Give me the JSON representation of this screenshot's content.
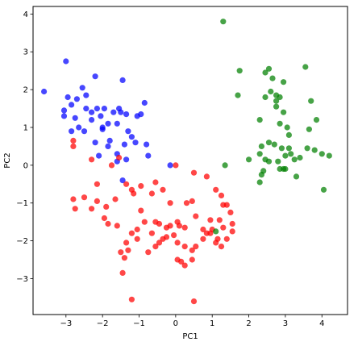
{
  "chart_data": {
    "type": "scatter",
    "xlabel": "PC1",
    "ylabel": "PC2",
    "xlim": [
      -3.9,
      4.7
    ],
    "ylim": [
      -3.95,
      4.2
    ],
    "xticks": [
      -3,
      -2,
      -1,
      0,
      1,
      2,
      3,
      4
    ],
    "yticks": [
      -3,
      -2,
      -1,
      0,
      1,
      2,
      3,
      4
    ],
    "xtick_labels": [
      "−3",
      "−2",
      "−1",
      "0",
      "1",
      "2",
      "3",
      "4"
    ],
    "ytick_labels": [
      "−3",
      "−2",
      "−1",
      "0",
      "1",
      "2",
      "3",
      "4"
    ],
    "grid": false,
    "series": [
      {
        "color": "#0000ff",
        "points": [
          [
            -3.6,
            1.95
          ],
          [
            -3.0,
            2.75
          ],
          [
            -2.95,
            1.8
          ],
          [
            -3.05,
            1.45
          ],
          [
            -3.05,
            1.3
          ],
          [
            -2.85,
            1.6
          ],
          [
            -2.7,
            1.75
          ],
          [
            -2.75,
            1.25
          ],
          [
            -2.65,
            1.0
          ],
          [
            -2.55,
            2.05
          ],
          [
            -2.45,
            1.85
          ],
          [
            -2.45,
            1.5
          ],
          [
            -2.5,
            0.9
          ],
          [
            -2.3,
            1.4
          ],
          [
            -2.3,
            1.2
          ],
          [
            -2.2,
            2.35
          ],
          [
            -2.15,
            1.5
          ],
          [
            -2.0,
            1.0
          ],
          [
            -2.0,
            0.95
          ],
          [
            -2.05,
            1.3
          ],
          [
            -1.95,
            1.5
          ],
          [
            -1.85,
            1.1
          ],
          [
            -1.85,
            0.5
          ],
          [
            -1.8,
            0.65
          ],
          [
            -1.7,
            1.4
          ],
          [
            -1.6,
            1.1
          ],
          [
            -1.55,
            1.5
          ],
          [
            -1.5,
            1.4
          ],
          [
            -1.45,
            2.25
          ],
          [
            -1.35,
            1.35
          ],
          [
            -1.3,
            0.9
          ],
          [
            -1.4,
            0.55
          ],
          [
            -1.2,
            0.75
          ],
          [
            -1.05,
            1.3
          ],
          [
            -1.1,
            0.6
          ],
          [
            -0.95,
            1.35
          ],
          [
            -0.85,
            1.65
          ],
          [
            -0.8,
            0.55
          ],
          [
            -2.85,
            0.9
          ],
          [
            -2.1,
            0.25
          ],
          [
            -1.6,
            0.1
          ],
          [
            -1.6,
            0.3
          ],
          [
            -1.35,
            0.15
          ],
          [
            -0.75,
            0.25
          ],
          [
            -0.15,
            0.0
          ],
          [
            -2.2,
            0.6
          ],
          [
            -1.45,
            -0.4
          ]
        ]
      },
      {
        "color": "#ff0000",
        "points": [
          [
            -2.8,
            0.65
          ],
          [
            -2.8,
            0.5
          ],
          [
            -2.3,
            0.15
          ],
          [
            -2.15,
            -0.5
          ],
          [
            -1.75,
            0.0
          ],
          [
            -1.55,
            0.2
          ],
          [
            -1.65,
            -0.9
          ],
          [
            -1.2,
            -0.65
          ],
          [
            -1.15,
            -0.75
          ],
          [
            -0.95,
            -0.55
          ],
          [
            -0.65,
            -0.75
          ],
          [
            -0.55,
            -0.45
          ],
          [
            -0.35,
            -0.65
          ],
          [
            -0.15,
            -1.0
          ],
          [
            -0.25,
            -1.65
          ],
          [
            0.05,
            -1.5
          ],
          [
            0.25,
            -1.65
          ],
          [
            0.45,
            -0.95
          ],
          [
            0.5,
            -0.2
          ],
          [
            0.55,
            -1.35
          ],
          [
            0.75,
            -1.7
          ],
          [
            0.85,
            -1.8
          ],
          [
            0.95,
            -1.45
          ],
          [
            1.1,
            -0.65
          ],
          [
            1.2,
            -1.45
          ],
          [
            1.25,
            -0.8
          ],
          [
            1.3,
            -1.05
          ],
          [
            1.3,
            -1.65
          ],
          [
            1.4,
            -1.05
          ],
          [
            1.5,
            -1.25
          ],
          [
            1.55,
            -1.55
          ],
          [
            1.55,
            -1.75
          ],
          [
            1.4,
            -1.95
          ],
          [
            1.25,
            -2.15
          ],
          [
            1.1,
            -2.05
          ],
          [
            0.95,
            -1.8
          ],
          [
            0.75,
            -1.95
          ],
          [
            0.55,
            -2.15
          ],
          [
            0.45,
            -2.25
          ],
          [
            0.45,
            -2.5
          ],
          [
            0.25,
            -2.15
          ],
          [
            0.15,
            -2.55
          ],
          [
            0.25,
            -2.65
          ],
          [
            0.05,
            -2.05
          ],
          [
            -0.05,
            -1.85
          ],
          [
            0.1,
            -1.6
          ],
          [
            -0.15,
            -1.6
          ],
          [
            -0.25,
            -1.9
          ],
          [
            -0.35,
            -1.95
          ],
          [
            -0.45,
            -1.55
          ],
          [
            -0.55,
            -1.5
          ],
          [
            -0.45,
            -2.05
          ],
          [
            -0.55,
            -2.15
          ],
          [
            -0.65,
            -1.8
          ],
          [
            -0.75,
            -2.3
          ],
          [
            -0.85,
            -1.5
          ],
          [
            -0.95,
            -1.2
          ],
          [
            -1.05,
            -1.7
          ],
          [
            -1.05,
            -1.95
          ],
          [
            -1.2,
            -1.8
          ],
          [
            -1.3,
            -2.25
          ],
          [
            -1.4,
            -2.45
          ],
          [
            -1.5,
            -2.3
          ],
          [
            -1.45,
            -2.85
          ],
          [
            -1.35,
            -2.05
          ],
          [
            -1.6,
            -1.6
          ],
          [
            -1.85,
            -1.55
          ],
          [
            -1.9,
            -1.1
          ],
          [
            -1.95,
            -1.4
          ],
          [
            -2.15,
            -0.95
          ],
          [
            -2.3,
            -1.15
          ],
          [
            -2.5,
            -0.85
          ],
          [
            -2.75,
            -1.15
          ],
          [
            -2.8,
            -0.9
          ],
          [
            -1.2,
            -3.55
          ],
          [
            0.5,
            -3.6
          ],
          [
            0.05,
            -2.5
          ],
          [
            -1.35,
            -0.5
          ],
          [
            0.85,
            -0.3
          ],
          [
            0.3,
            -1.0
          ],
          [
            0.0,
            0.0
          ],
          [
            1.0,
            -1.7
          ],
          [
            1.15,
            -1.95
          ]
        ]
      },
      {
        "color": "#008000",
        "points": [
          [
            1.3,
            3.8
          ],
          [
            1.75,
            2.5
          ],
          [
            1.7,
            1.85
          ],
          [
            2.0,
            0.15
          ],
          [
            2.3,
            1.2
          ],
          [
            2.35,
            0.5
          ],
          [
            2.3,
            0.3
          ],
          [
            2.35,
            -0.25
          ],
          [
            2.4,
            -0.15
          ],
          [
            2.45,
            2.45
          ],
          [
            2.45,
            1.8
          ],
          [
            2.55,
            2.55
          ],
          [
            2.6,
            1.95
          ],
          [
            2.65,
            2.3
          ],
          [
            2.75,
            1.85
          ],
          [
            2.75,
            1.7
          ],
          [
            2.85,
            1.8
          ],
          [
            2.85,
            1.1
          ],
          [
            2.95,
            2.2
          ],
          [
            2.95,
            1.4
          ],
          [
            3.05,
            1.0
          ],
          [
            3.1,
            0.8
          ],
          [
            2.85,
            -0.1
          ],
          [
            2.95,
            -0.1
          ],
          [
            3.0,
            -0.1
          ],
          [
            3.15,
            0.3
          ],
          [
            3.25,
            0.15
          ],
          [
            3.3,
            -0.3
          ],
          [
            3.4,
            0.2
          ],
          [
            3.55,
            2.6
          ],
          [
            3.6,
            0.45
          ],
          [
            3.65,
            0.95
          ],
          [
            3.7,
            1.7
          ],
          [
            3.8,
            0.4
          ],
          [
            3.85,
            1.2
          ],
          [
            4.0,
            0.3
          ],
          [
            4.05,
            -0.65
          ],
          [
            4.2,
            0.25
          ],
          [
            2.55,
            0.6
          ],
          [
            2.55,
            0.1
          ],
          [
            2.45,
            0.15
          ],
          [
            2.7,
            0.55
          ],
          [
            2.8,
            0.1
          ],
          [
            2.9,
            0.45
          ],
          [
            3.0,
            0.25
          ],
          [
            3.1,
            0.45
          ],
          [
            2.75,
            1.55
          ],
          [
            1.35,
            0.0
          ],
          [
            2.3,
            -0.45
          ],
          [
            1.1,
            -1.75
          ]
        ]
      }
    ]
  }
}
